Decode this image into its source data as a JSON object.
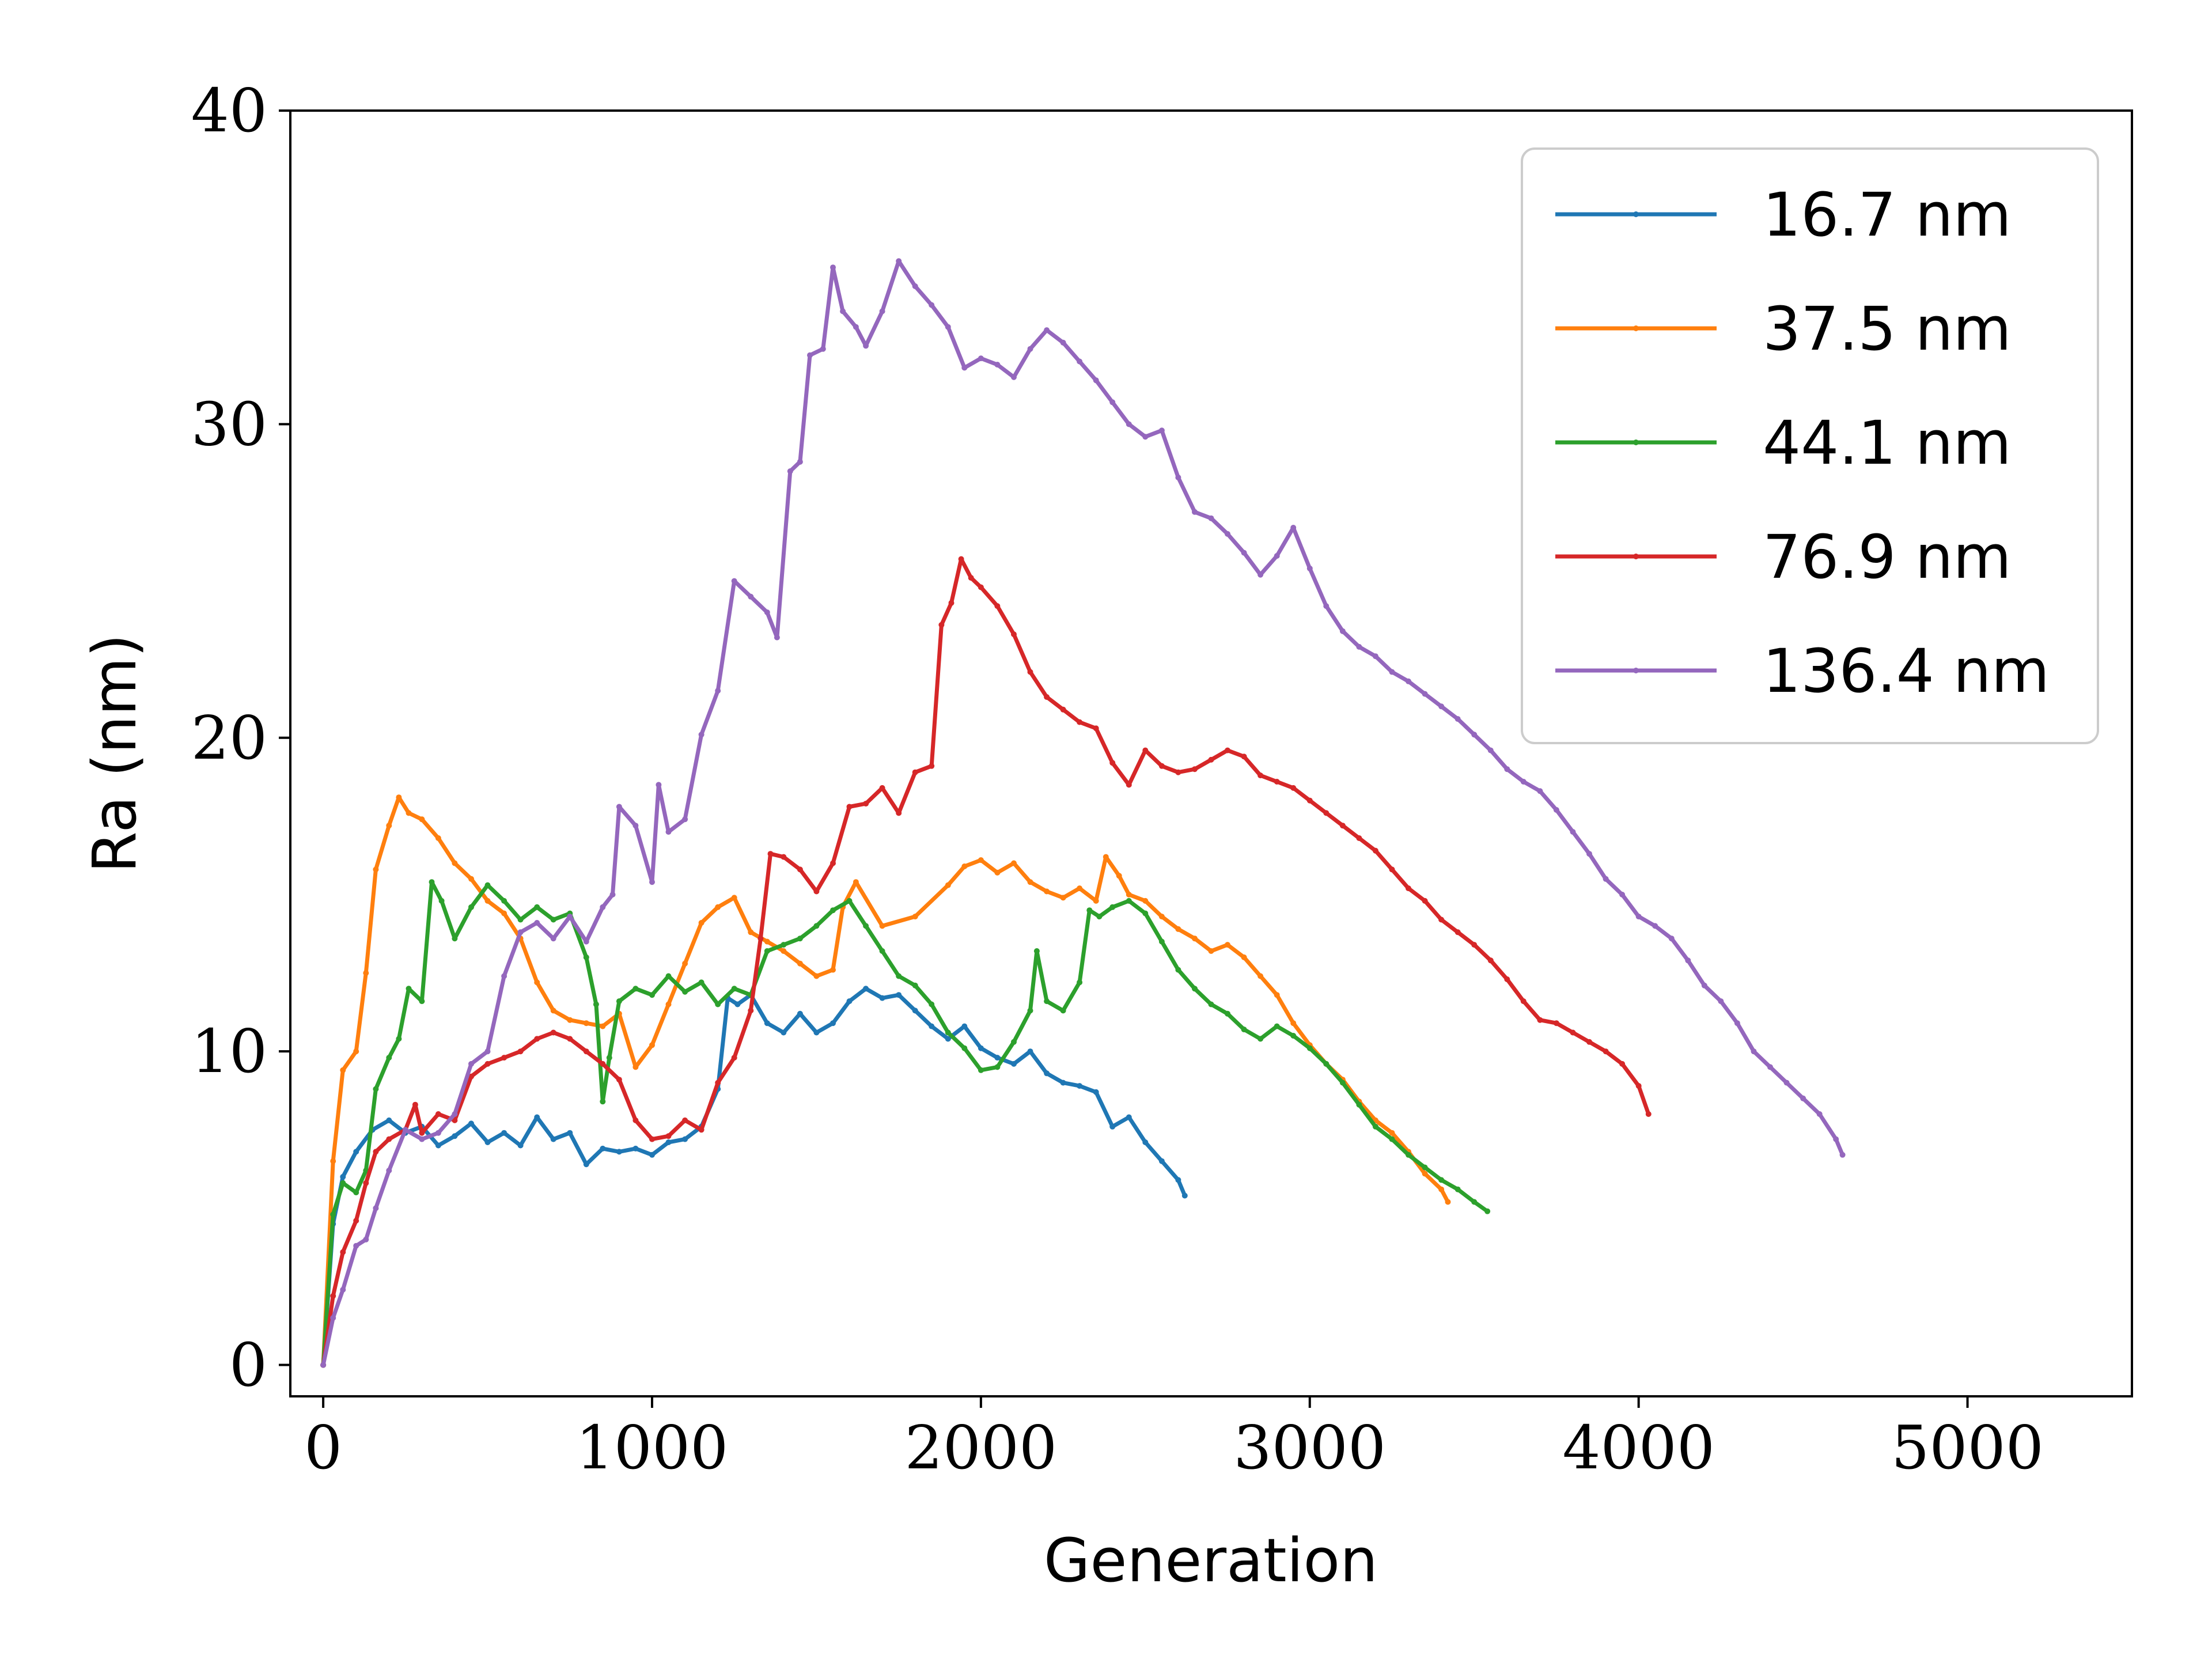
{
  "chart_data": {
    "type": "line",
    "xlabel": "Generation",
    "ylabel": "Ra (nm)",
    "xlim": [
      -100,
      5500
    ],
    "ylim": [
      -1,
      40
    ],
    "xticks": [
      0,
      1000,
      2000,
      3000,
      4000,
      5000
    ],
    "yticks": [
      0,
      10,
      20,
      30,
      40
    ],
    "xtick_labels": [
      "0",
      "1000",
      "2000",
      "3000",
      "4000",
      "5000"
    ],
    "ytick_labels": [
      "0",
      "10",
      "20",
      "30",
      "40"
    ],
    "grid": false,
    "legend_position": "top-right",
    "series": [
      {
        "name": "16.7 nm",
        "color": "#1f77b4",
        "x": [
          0,
          30,
          60,
          100,
          150,
          200,
          250,
          300,
          350,
          400,
          450,
          500,
          550,
          600,
          650,
          700,
          750,
          800,
          850,
          900,
          950,
          1000,
          1050,
          1100,
          1150,
          1200,
          1230,
          1260,
          1300,
          1350,
          1400,
          1450,
          1500,
          1550,
          1600,
          1650,
          1700,
          1750,
          1800,
          1850,
          1900,
          1950,
          2000,
          2050,
          2100,
          2150,
          2200,
          2250,
          2300,
          2350,
          2400,
          2450,
          2500,
          2550,
          2600,
          2620
        ],
        "y": [
          0,
          4.5,
          6.0,
          6.8,
          7.5,
          7.8,
          7.4,
          7.6,
          7.0,
          7.3,
          7.7,
          7.1,
          7.4,
          7.0,
          7.9,
          7.2,
          7.4,
          6.4,
          6.9,
          6.8,
          6.9,
          6.7,
          7.1,
          7.2,
          7.6,
          8.8,
          11.7,
          11.5,
          11.8,
          10.9,
          10.6,
          11.2,
          10.6,
          10.9,
          11.6,
          12.0,
          11.7,
          11.8,
          11.3,
          10.8,
          10.4,
          10.8,
          10.1,
          9.8,
          9.6,
          10.0,
          9.3,
          9.0,
          8.9,
          8.7,
          7.6,
          7.9,
          7.1,
          6.5,
          5.9,
          5.4
        ]
      },
      {
        "name": "37.5 nm",
        "color": "#ff7f0e",
        "x": [
          0,
          30,
          60,
          100,
          130,
          160,
          200,
          230,
          260,
          300,
          350,
          400,
          450,
          500,
          550,
          600,
          650,
          700,
          750,
          800,
          850,
          900,
          950,
          1000,
          1050,
          1100,
          1150,
          1200,
          1250,
          1300,
          1350,
          1400,
          1450,
          1500,
          1550,
          1580,
          1620,
          1700,
          1800,
          1900,
          1950,
          2000,
          2050,
          2100,
          2150,
          2200,
          2250,
          2300,
          2350,
          2380,
          2420,
          2450,
          2500,
          2550,
          2600,
          2650,
          2700,
          2750,
          2800,
          2850,
          2900,
          2950,
          3000,
          3050,
          3100,
          3150,
          3200,
          3250,
          3300,
          3350,
          3400,
          3420
        ],
        "y": [
          0,
          6.5,
          9.4,
          10.0,
          12.5,
          15.8,
          17.2,
          18.1,
          17.6,
          17.4,
          16.8,
          16.0,
          15.5,
          14.8,
          14.4,
          13.6,
          12.2,
          11.3,
          11.0,
          10.9,
          10.8,
          11.2,
          9.5,
          10.2,
          11.5,
          12.8,
          14.1,
          14.6,
          14.9,
          13.8,
          13.5,
          13.2,
          12.8,
          12.4,
          12.6,
          14.6,
          15.4,
          14.0,
          14.3,
          15.3,
          15.9,
          16.1,
          15.7,
          16.0,
          15.4,
          15.1,
          14.9,
          15.2,
          14.8,
          16.2,
          15.6,
          15.0,
          14.8,
          14.3,
          13.9,
          13.6,
          13.2,
          13.4,
          13.0,
          12.4,
          11.8,
          10.9,
          10.2,
          9.6,
          9.1,
          8.4,
          7.8,
          7.4,
          6.8,
          6.1,
          5.6,
          5.2
        ]
      },
      {
        "name": "44.1 nm",
        "color": "#2ca02c",
        "x": [
          0,
          30,
          60,
          100,
          130,
          160,
          200,
          230,
          260,
          300,
          330,
          360,
          400,
          450,
          500,
          550,
          600,
          650,
          700,
          750,
          800,
          830,
          850,
          870,
          900,
          950,
          1000,
          1050,
          1100,
          1150,
          1200,
          1250,
          1300,
          1350,
          1400,
          1450,
          1500,
          1550,
          1600,
          1650,
          1700,
          1750,
          1800,
          1850,
          1900,
          1950,
          2000,
          2050,
          2100,
          2150,
          2170,
          2200,
          2250,
          2300,
          2330,
          2360,
          2400,
          2450,
          2500,
          2550,
          2600,
          2650,
          2700,
          2750,
          2800,
          2850,
          2900,
          2950,
          3000,
          3050,
          3100,
          3150,
          3200,
          3250,
          3300,
          3350,
          3400,
          3450,
          3500,
          3540
        ],
        "y": [
          0,
          4.8,
          5.8,
          5.5,
          6.2,
          8.8,
          9.8,
          10.4,
          12.0,
          11.6,
          15.4,
          14.8,
          13.6,
          14.6,
          15.3,
          14.8,
          14.2,
          14.6,
          14.2,
          14.4,
          13.0,
          11.5,
          8.4,
          9.8,
          11.6,
          12.0,
          11.8,
          12.4,
          11.9,
          12.2,
          11.5,
          12.0,
          11.8,
          13.2,
          13.4,
          13.6,
          14.0,
          14.5,
          14.8,
          14.0,
          13.2,
          12.4,
          12.1,
          11.5,
          10.6,
          10.1,
          9.4,
          9.5,
          10.3,
          11.3,
          13.2,
          11.6,
          11.3,
          12.2,
          14.5,
          14.3,
          14.6,
          14.8,
          14.4,
          13.5,
          12.6,
          12.0,
          11.5,
          11.2,
          10.7,
          10.4,
          10.8,
          10.5,
          10.1,
          9.6,
          9.0,
          8.3,
          7.6,
          7.2,
          6.7,
          6.3,
          5.9,
          5.6,
          5.2,
          4.9
        ]
      },
      {
        "name": "76.9 nm",
        "color": "#d62728",
        "x": [
          0,
          30,
          60,
          100,
          130,
          160,
          200,
          250,
          280,
          300,
          350,
          400,
          450,
          500,
          550,
          600,
          650,
          700,
          750,
          800,
          850,
          900,
          950,
          1000,
          1050,
          1100,
          1150,
          1200,
          1250,
          1300,
          1330,
          1360,
          1400,
          1450,
          1500,
          1550,
          1600,
          1650,
          1700,
          1750,
          1800,
          1850,
          1880,
          1910,
          1940,
          1970,
          2000,
          2050,
          2100,
          2150,
          2200,
          2250,
          2300,
          2350,
          2400,
          2450,
          2500,
          2550,
          2600,
          2650,
          2700,
          2750,
          2800,
          2850,
          2900,
          2950,
          3000,
          3050,
          3100,
          3150,
          3200,
          3250,
          3300,
          3350,
          3400,
          3450,
          3500,
          3550,
          3600,
          3650,
          3700,
          3750,
          3800,
          3850,
          3900,
          3950,
          4000,
          4030
        ],
        "y": [
          0,
          2.2,
          3.6,
          4.6,
          5.8,
          6.8,
          7.2,
          7.5,
          8.3,
          7.4,
          8.0,
          7.8,
          9.2,
          9.6,
          9.8,
          10.0,
          10.4,
          10.6,
          10.4,
          10.0,
          9.6,
          9.1,
          7.8,
          7.2,
          7.3,
          7.8,
          7.5,
          9.0,
          9.8,
          11.3,
          13.6,
          16.3,
          16.2,
          15.8,
          15.1,
          16.0,
          17.8,
          17.9,
          18.4,
          17.6,
          18.9,
          19.1,
          23.6,
          24.3,
          25.7,
          25.1,
          24.8,
          24.2,
          23.3,
          22.1,
          21.3,
          20.9,
          20.5,
          20.3,
          19.2,
          18.5,
          19.6,
          19.1,
          18.9,
          19.0,
          19.3,
          19.6,
          19.4,
          18.8,
          18.6,
          18.4,
          18.0,
          17.6,
          17.2,
          16.8,
          16.4,
          15.8,
          15.2,
          14.8,
          14.2,
          13.8,
          13.4,
          12.9,
          12.3,
          11.6,
          11.0,
          10.9,
          10.6,
          10.3,
          10.0,
          9.6,
          8.9,
          8.0
        ]
      },
      {
        "name": "136.4 nm",
        "color": "#9467bd",
        "x": [
          0,
          30,
          60,
          100,
          130,
          160,
          200,
          250,
          300,
          350,
          400,
          450,
          500,
          550,
          600,
          650,
          700,
          750,
          800,
          850,
          880,
          900,
          950,
          1000,
          1020,
          1050,
          1100,
          1150,
          1200,
          1250,
          1300,
          1350,
          1380,
          1420,
          1450,
          1480,
          1520,
          1550,
          1580,
          1620,
          1650,
          1700,
          1750,
          1800,
          1850,
          1900,
          1950,
          2000,
          2050,
          2100,
          2150,
          2200,
          2250,
          2300,
          2350,
          2400,
          2450,
          2500,
          2550,
          2600,
          2650,
          2700,
          2750,
          2800,
          2850,
          2900,
          2950,
          3000,
          3050,
          3100,
          3150,
          3200,
          3250,
          3300,
          3350,
          3400,
          3450,
          3500,
          3550,
          3600,
          3650,
          3700,
          3750,
          3800,
          3850,
          3900,
          3950,
          4000,
          4050,
          4100,
          4150,
          4200,
          4250,
          4300,
          4350,
          4400,
          4450,
          4500,
          4550,
          4600,
          4620
        ],
        "y": [
          0,
          1.5,
          2.4,
          3.8,
          4.0,
          5.0,
          6.2,
          7.5,
          7.2,
          7.4,
          8.0,
          9.6,
          10.0,
          12.4,
          13.8,
          14.1,
          13.6,
          14.3,
          13.5,
          14.6,
          15.0,
          17.8,
          17.2,
          15.4,
          18.5,
          17.0,
          17.4,
          20.1,
          21.5,
          25.0,
          24.5,
          24.0,
          23.2,
          28.5,
          28.8,
          32.2,
          32.4,
          35.0,
          33.6,
          33.1,
          32.5,
          33.6,
          35.2,
          34.4,
          33.8,
          33.1,
          31.8,
          32.1,
          31.9,
          31.5,
          32.4,
          33.0,
          32.6,
          32.0,
          31.4,
          30.7,
          30.0,
          29.6,
          29.8,
          28.3,
          27.2,
          27.0,
          26.5,
          25.9,
          25.2,
          25.8,
          26.7,
          25.4,
          24.2,
          23.4,
          22.9,
          22.6,
          22.1,
          21.8,
          21.4,
          21.0,
          20.6,
          20.1,
          19.6,
          19.0,
          18.6,
          18.3,
          17.7,
          17.0,
          16.3,
          15.5,
          15.0,
          14.3,
          14.0,
          13.6,
          12.9,
          12.1,
          11.6,
          10.9,
          10.0,
          9.5,
          9.0,
          8.5,
          8.0,
          7.2,
          6.7
        ]
      }
    ]
  }
}
